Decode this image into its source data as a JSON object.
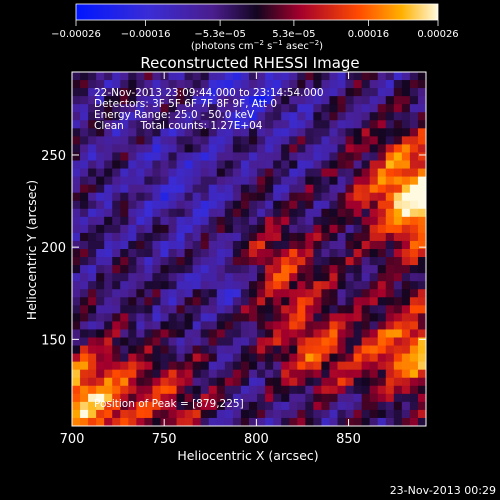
{
  "chart_data": {
    "type": "heatmap",
    "title": "Reconstructed RHESSI Image",
    "xlabel": "Heliocentric X (arcsec)",
    "ylabel": "Heliocentric Y (arcsec)",
    "xlim": [
      700,
      892
    ],
    "ylim": [
      103,
      295
    ],
    "x_ticks": [
      700,
      750,
      800,
      850
    ],
    "y_ticks": [
      150,
      200,
      250
    ],
    "colorbar": {
      "label_html": "(photons cm<tspan baseline-shift='super' font-size='7'>−2</tspan> s<tspan baseline-shift='super' font-size='7'>−1</tspan> asec<tspan baseline-shift='super' font-size='7'>−2</tspan>)",
      "label_text": "(photons cm-2 s-1 asec-2)",
      "range": [
        -0.00026,
        0.00026
      ],
      "tick_values": [
        -0.00026,
        -0.00016,
        -5.3e-05,
        5.3e-05,
        0.00016,
        0.00026
      ],
      "tick_labels": [
        "−0.00026",
        "−0.00016",
        "−5.3e−05",
        "5.3e−05",
        "0.00016",
        "0.00026"
      ]
    },
    "annotations": [
      "22-Nov-2013 23:09:44.000 to 23:14:54.000",
      "Detectors: 3F 5F 6F 7F 8F 9F, Att 0",
      "Energy Range: 25.0 - 50.0 keV",
      "Clean     Total counts: 1.27E+04"
    ],
    "peak_text": "Position of Peak = [879,225]",
    "peak_position": [
      879,
      225
    ],
    "grid": false
  },
  "footer": {
    "timestamp": "23-Nov-2013 00:29"
  },
  "colors": {
    "background": "#000000",
    "text": "#ffffff"
  }
}
